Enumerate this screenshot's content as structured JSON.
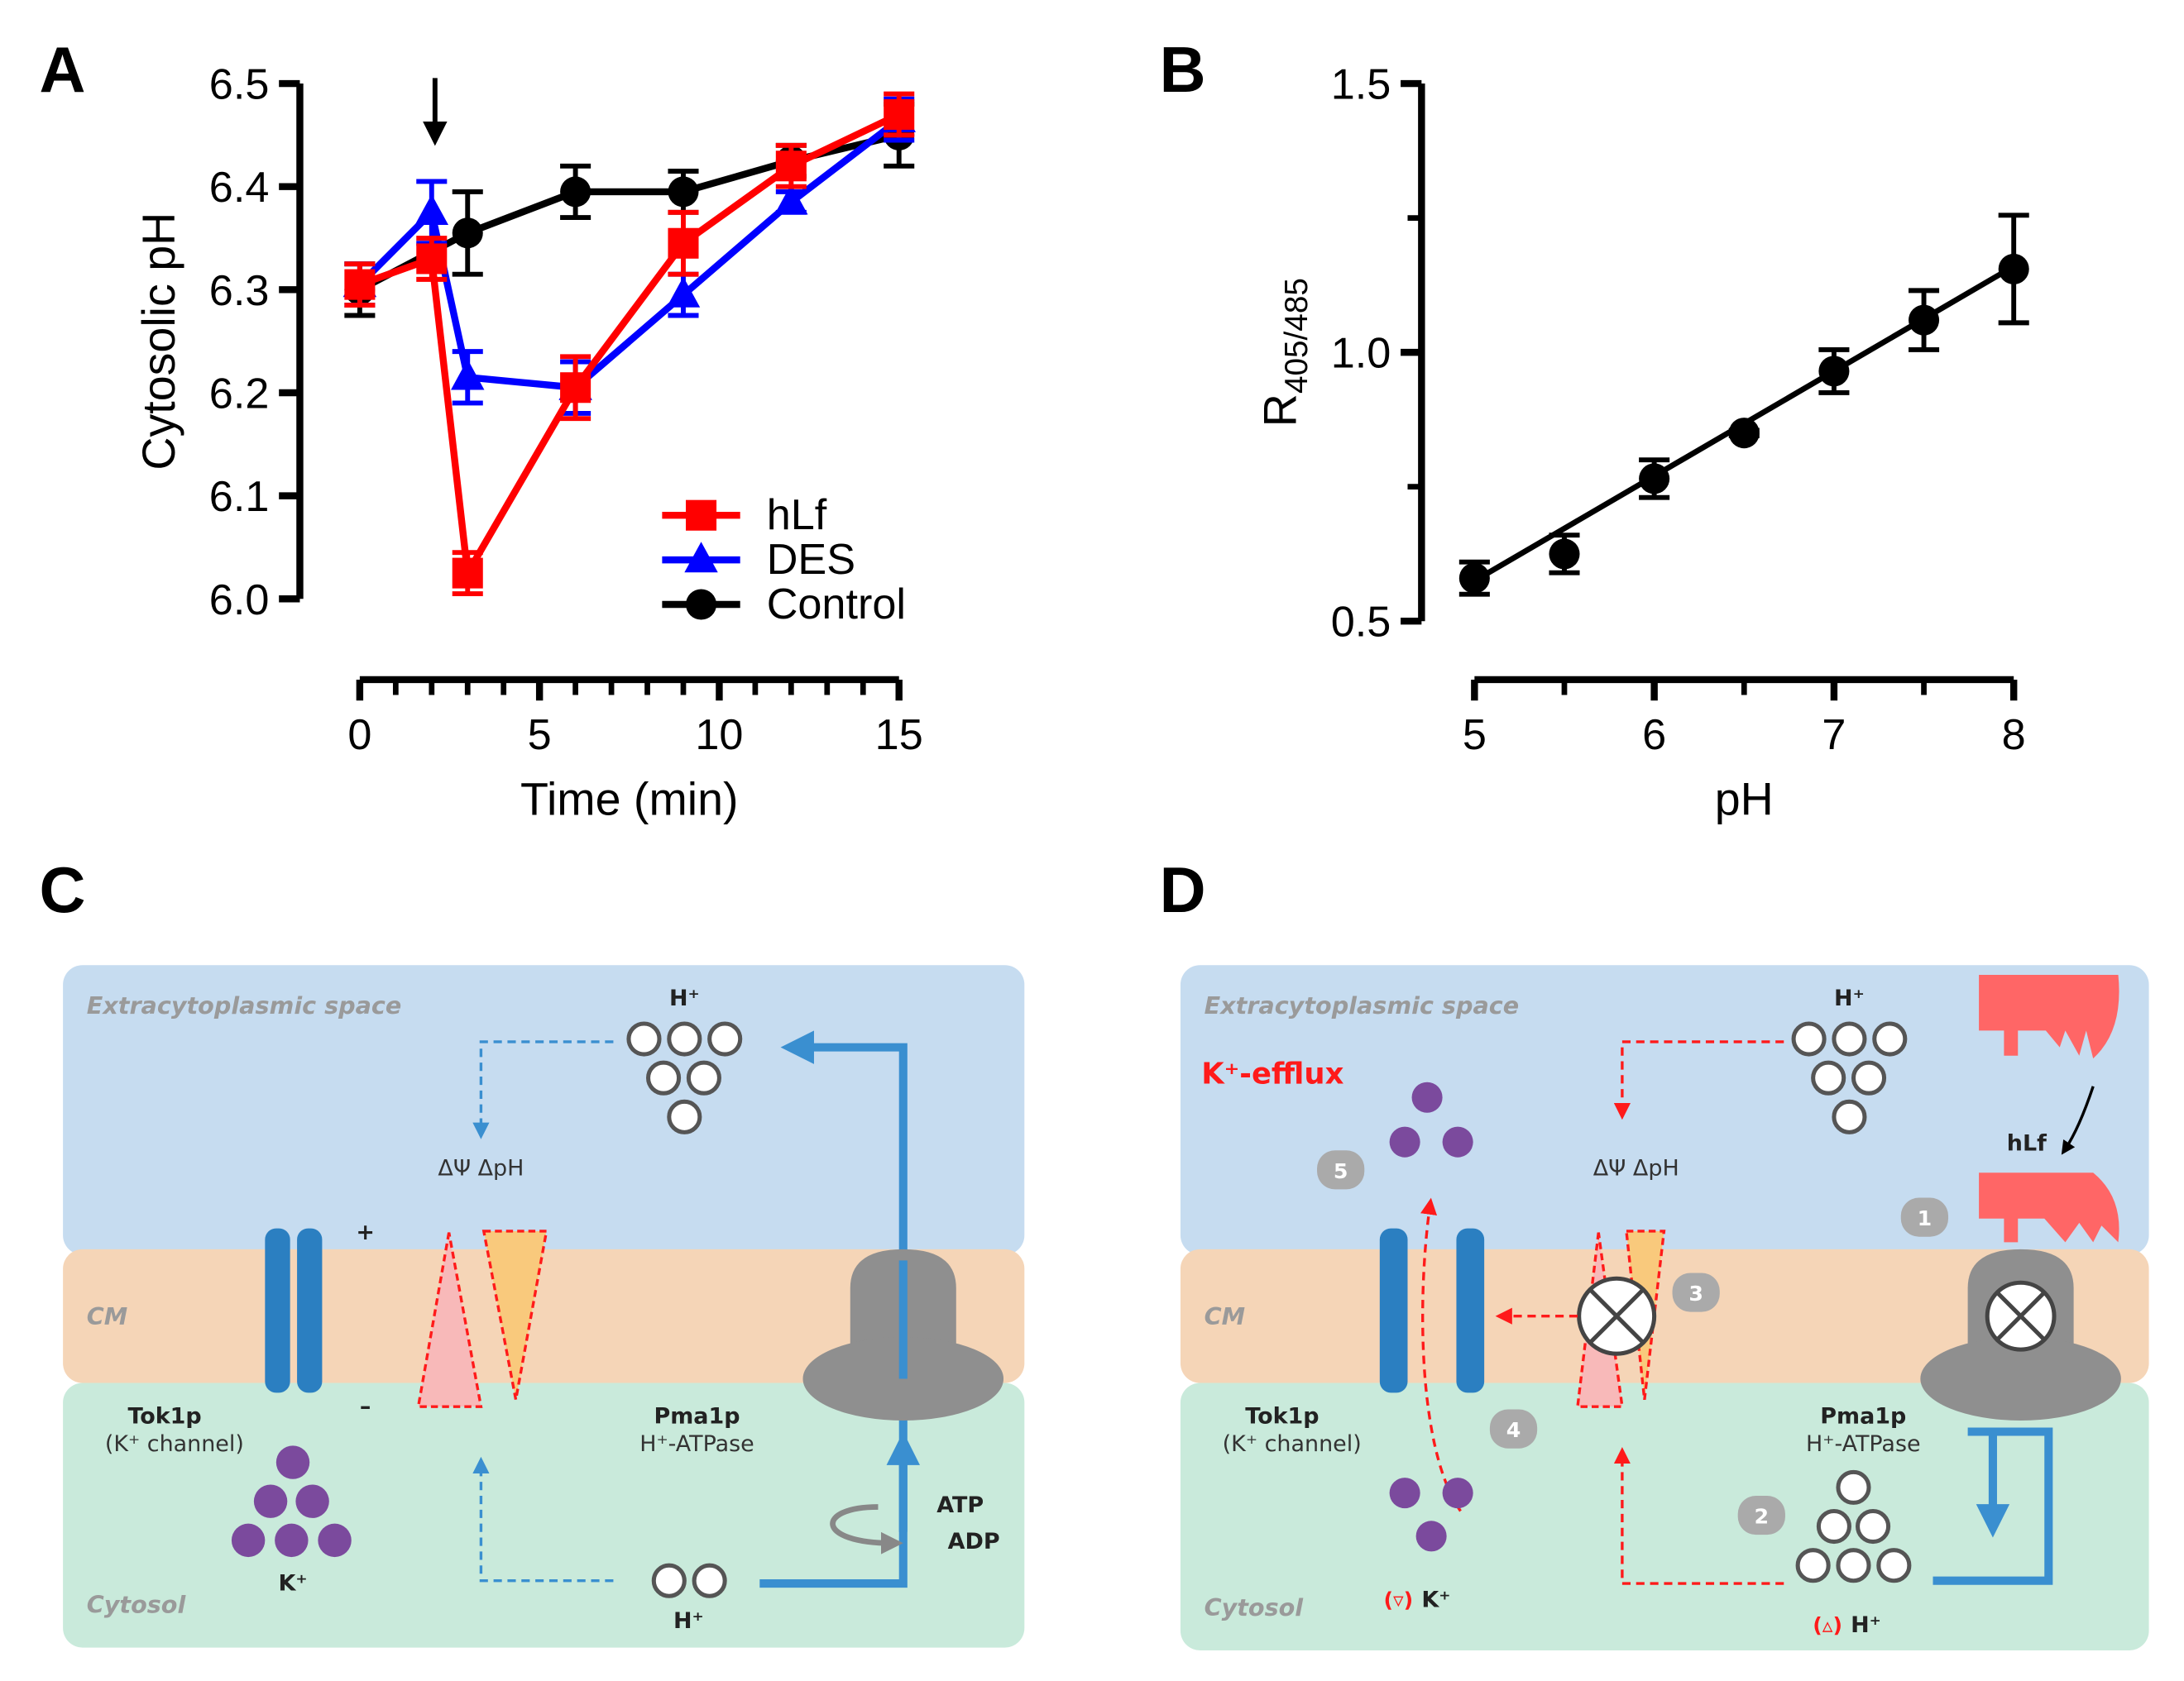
{
  "chart_data": [
    {
      "type": "line",
      "panel": "A",
      "xlabel": "Time (min)",
      "ylabel": "Cytosolic pH",
      "xlim": [
        0,
        15
      ],
      "xticks": [
        0,
        5,
        10,
        15
      ],
      "xminor_ticks": [
        1,
        2,
        3,
        4,
        6,
        7,
        8,
        9,
        11,
        12,
        13,
        14
      ],
      "ylim": [
        6.0,
        6.5
      ],
      "yticks": [
        {
          "value": 6.0,
          "label": "6.0"
        },
        6.1,
        6.2,
        6.3,
        6.4,
        6.5
      ],
      "legend": "lower right",
      "series": [
        {
          "name": "hLf",
          "color": "#ff0000",
          "marker": "square",
          "x": [
            0,
            2,
            3,
            6,
            9,
            12,
            15
          ],
          "values": [
            6.305,
            6.33,
            6.025,
            6.205,
            6.345,
            6.42,
            6.47
          ],
          "errors": [
            0.02,
            0.02,
            0.02,
            0.03,
            0.03,
            0.02,
            0.02
          ]
        },
        {
          "name": "DES",
          "color": "#0000ff",
          "marker": "triangle",
          "x": [
            0,
            2,
            3,
            6,
            9,
            12,
            15
          ],
          "values": [
            6.305,
            6.375,
            6.215,
            6.205,
            6.295,
            6.385,
            6.465
          ],
          "errors": [
            0.02,
            0.03,
            0.025,
            0.025,
            0.02,
            0.01,
            0.02
          ]
        },
        {
          "name": "Control",
          "color": "#000000",
          "marker": "circle",
          "x": [
            0,
            3,
            6,
            9,
            12,
            15
          ],
          "values": [
            6.3,
            6.355,
            6.395,
            6.395,
            6.425,
            6.45
          ],
          "errors": [
            0.025,
            0.04,
            0.025,
            0.02,
            0.015,
            0.03
          ]
        }
      ]
    },
    {
      "type": "scatter",
      "panel": "B",
      "xlabel": "pH",
      "ylabel": "R",
      "ylabel_sub": "405/485",
      "xlim": [
        5,
        8
      ],
      "xticks": [
        5,
        6,
        7,
        8
      ],
      "xminor_ticks": [
        5.5,
        6.5,
        7.5
      ],
      "ylim": [
        0.5,
        1.5
      ],
      "yticks": [
        0.5,
        {
          "value": 1.0,
          "label": "1.0"
        },
        1.5
      ],
      "yminor_ticks": [
        0.75,
        1.25
      ],
      "series": [
        {
          "color": "#000000",
          "marker": "circle",
          "x": [
            5,
            5.5,
            6,
            6.5,
            7,
            7.5,
            8
          ],
          "values": [
            0.58,
            0.625,
            0.765,
            0.85,
            0.965,
            1.06,
            1.155
          ],
          "errors": [
            0.03,
            0.035,
            0.035,
            0.005,
            0.04,
            0.055,
            0.1
          ]
        }
      ],
      "fit": {
        "x": [
          5,
          8
        ],
        "values": [
          0.575,
          1.16
        ]
      }
    }
  ],
  "panel_c": {
    "letter": "C",
    "region_top": "Extracytoplasmic space",
    "region_cm": "CM",
    "region_cytosol": "Cytosol",
    "proton_top": "H⁺",
    "delta": "ΔΨ  ΔpH",
    "plus": "+",
    "minus": "–",
    "channel_name": "Tok1p",
    "channel_desc": "(K⁺ channel)",
    "pump_name": "Pma1p",
    "pump_desc": "H⁺-ATPase",
    "potassium": "K⁺",
    "proton_bottom": "H⁺",
    "atp": "ATP",
    "adp": "ADP"
  },
  "panel_d": {
    "letter": "D",
    "region_top": "Extracytoplasmic space",
    "region_cm": "CM",
    "region_cytosol": "Cytosol",
    "efflux": "K⁺-efflux",
    "proton_top": "H⁺",
    "delta": "ΔΨ  ΔpH",
    "hlf": "hLf",
    "steps": [
      "1",
      "2",
      "3",
      "4",
      "5"
    ],
    "channel_name": "Tok1p",
    "channel_desc": "(K⁺ channel)",
    "pump_name": "Pma1p",
    "pump_desc": "H⁺-ATPase",
    "k_marker": "(▿)",
    "potassium": "K⁺",
    "h_marker": "(▵)",
    "proton_bottom": "H⁺"
  }
}
